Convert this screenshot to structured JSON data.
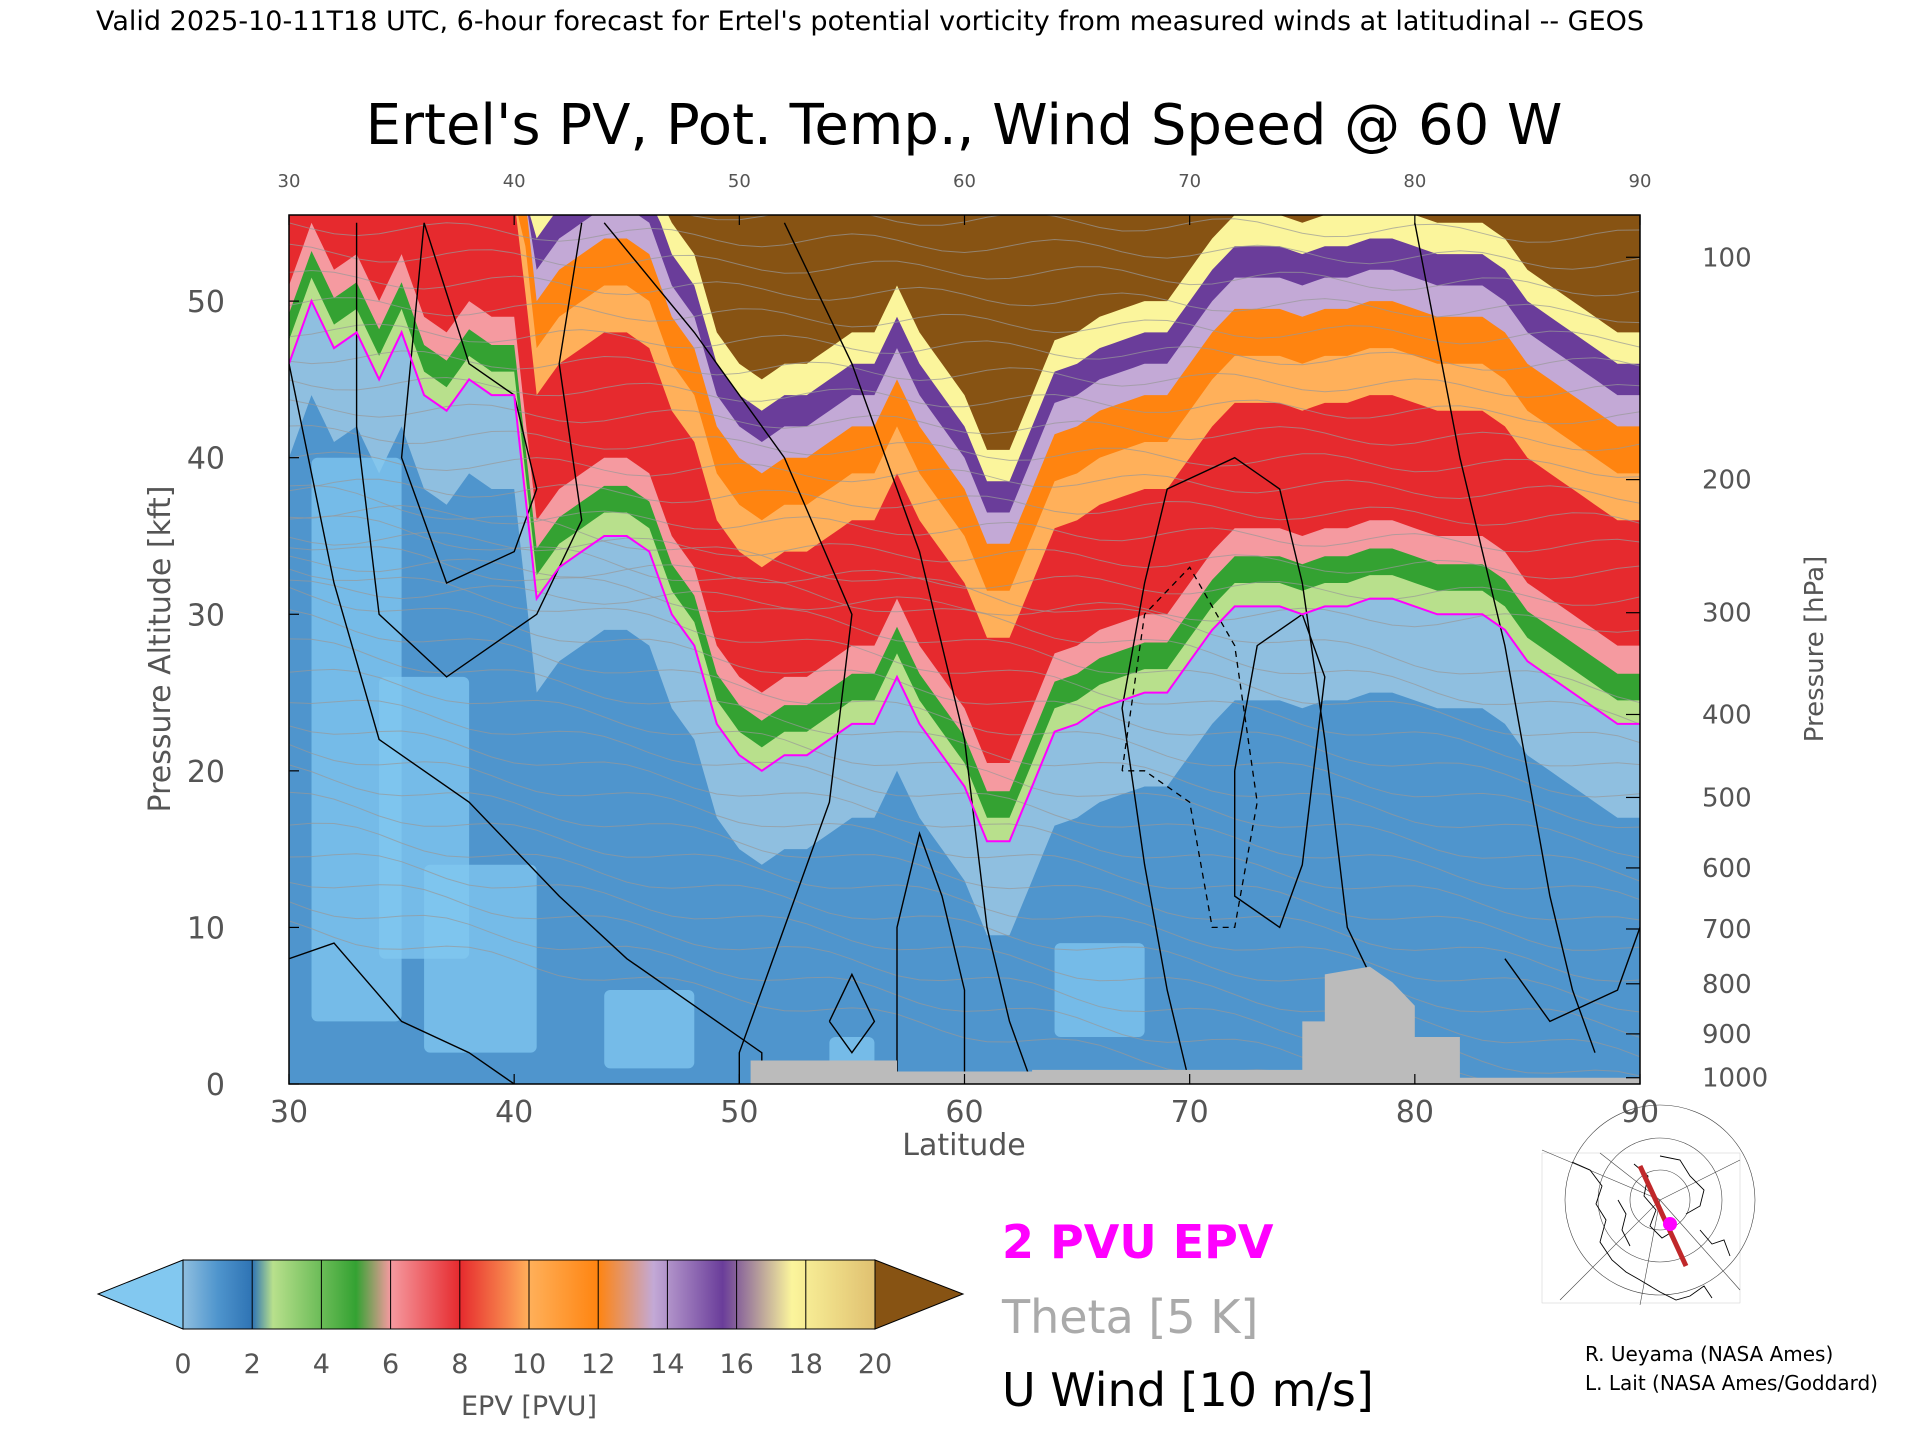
{
  "header": {
    "valid_line": "Valid 2025-10-11T18 UTC, 6-hour forecast for Ertel's potential vorticity from measured winds at latitudinal -- GEOS"
  },
  "chart_data": {
    "type": "heatmap",
    "title": "Ertel's PV, Pot. Temp., Wind Speed @ 60 W",
    "xlabel": "Latitude",
    "ylabel": "Pressure Altitude [kft]",
    "y2label": "Pressure [hPa]",
    "xlim": [
      30,
      90
    ],
    "ylim": [
      0,
      55.5
    ],
    "x_ticks": [
      "30",
      "40",
      "50",
      "60",
      "70",
      "80",
      "90"
    ],
    "top_x_ticks": [
      "30",
      "40",
      "50",
      "60",
      "70",
      "80",
      "90"
    ],
    "y_ticks": [
      {
        "value": 0,
        "label": "0"
      },
      {
        "value": 10,
        "label": "10"
      },
      {
        "value": 20,
        "label": "20"
      },
      {
        "value": 30,
        "label": "30"
      },
      {
        "value": 40,
        "label": "40"
      },
      {
        "value": 50,
        "label": "50"
      }
    ],
    "pressure_ticks": [
      {
        "alt_kft": 52.8,
        "label": "100"
      },
      {
        "alt_kft": 38.6,
        "label": "200"
      },
      {
        "alt_kft": 30.1,
        "label": "300"
      },
      {
        "alt_kft": 23.6,
        "label": "400"
      },
      {
        "alt_kft": 18.3,
        "label": "500"
      },
      {
        "alt_kft": 13.8,
        "label": "600"
      },
      {
        "alt_kft": 9.9,
        "label": "700"
      },
      {
        "alt_kft": 6.4,
        "label": "800"
      },
      {
        "alt_kft": 3.2,
        "label": "900"
      },
      {
        "alt_kft": 0.4,
        "label": "1000"
      }
    ],
    "tropopause_2pvu_kft": [
      [
        30,
        46
      ],
      [
        31,
        50
      ],
      [
        32,
        47
      ],
      [
        33,
        48
      ],
      [
        34,
        45
      ],
      [
        35,
        48
      ],
      [
        36,
        44
      ],
      [
        37,
        43
      ],
      [
        38,
        45
      ],
      [
        39,
        44
      ],
      [
        40,
        44
      ],
      [
        41,
        31
      ],
      [
        42,
        33
      ],
      [
        43,
        34
      ],
      [
        44,
        35
      ],
      [
        45,
        35
      ],
      [
        46,
        34
      ],
      [
        47,
        30
      ],
      [
        48,
        28
      ],
      [
        49,
        23
      ],
      [
        50,
        21
      ],
      [
        51,
        20
      ],
      [
        52,
        21
      ],
      [
        53,
        21
      ],
      [
        54,
        22
      ],
      [
        55,
        23
      ],
      [
        56,
        23
      ],
      [
        57,
        26
      ],
      [
        58,
        23
      ],
      [
        59,
        21
      ],
      [
        60,
        19
      ],
      [
        61,
        15.5
      ],
      [
        62,
        15.5
      ],
      [
        63,
        19
      ],
      [
        64,
        22.5
      ],
      [
        65,
        23
      ],
      [
        66,
        24
      ],
      [
        67,
        24.5
      ],
      [
        68,
        25
      ],
      [
        69,
        25
      ],
      [
        70,
        27
      ],
      [
        71,
        29
      ],
      [
        72,
        30.5
      ],
      [
        73,
        30.5
      ],
      [
        74,
        30.5
      ],
      [
        75,
        30
      ],
      [
        76,
        30.5
      ],
      [
        77,
        30.5
      ],
      [
        78,
        31
      ],
      [
        79,
        31
      ],
      [
        80,
        30.5
      ],
      [
        81,
        30
      ],
      [
        82,
        30
      ],
      [
        83,
        30
      ],
      [
        84,
        29
      ],
      [
        85,
        27
      ],
      [
        86,
        26
      ],
      [
        87,
        25
      ],
      [
        88,
        24
      ],
      [
        89,
        23
      ],
      [
        90,
        23
      ]
    ],
    "theta_contours_K": [
      "300",
      "310",
      "320",
      "330",
      "340",
      "350",
      "360",
      "380",
      "400",
      "420"
    ],
    "u_wind_contours_ms": [
      "-10",
      "0",
      "10",
      "20",
      "30",
      "40",
      "50"
    ],
    "colorbar": {
      "label": "EPV [PVU]",
      "ticks": [
        "0",
        "2",
        "4",
        "6",
        "8",
        "10",
        "12",
        "14",
        "16",
        "18",
        "20"
      ],
      "range": [
        0,
        20
      ],
      "extend": "both",
      "colors": {
        "under": "#82c8f0",
        "blue_light": "#8fbfe0",
        "blue": "#4f95cd",
        "blue_dark": "#2e73b4",
        "green_light": "#b8e08c",
        "green": "#34a232",
        "pink": "#f59aa0",
        "red": "#e62a2e",
        "orange_light": "#ffb05a",
        "orange": "#ff8410",
        "purple_light": "#c3a9d6",
        "purple": "#6a3d9a",
        "yellow": "#fbf59c",
        "over": "#875313"
      }
    }
  },
  "legend": {
    "pv_label": "2 PVU EPV",
    "pv_color": "#ff00ff",
    "theta_label": "Theta [5 K]",
    "theta_color": "#aaaaaa",
    "wind_label": "U Wind [10 m/s]",
    "wind_color": "#000000"
  },
  "credits": {
    "line1": "R. Ueyama (NASA Ames)",
    "line2": "L. Lait (NASA Ames/Goddard)"
  }
}
